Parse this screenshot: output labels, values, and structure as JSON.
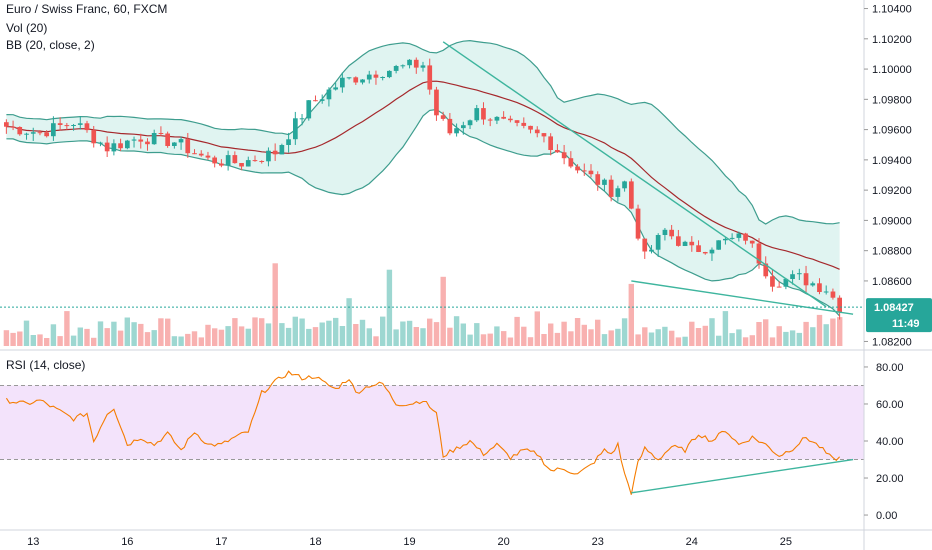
{
  "legend": {
    "title": "Euro / Swiss Franc, 60, FXCM",
    "vol": "Vol (20)",
    "bb": "BB (20, close, 2)",
    "rsi": "RSI (14, close)"
  },
  "price_tag": {
    "price": "1.08427",
    "countdown": "11:49"
  },
  "colors": {
    "up": "#26a69a",
    "down": "#ef5350",
    "bb_line": "#3e9d8e",
    "bb_fill": "#d8f1ee",
    "basis": "#a5282c",
    "rsi_line": "#f57c00",
    "rsi_band": "#f3e3fb",
    "trend": "#3eb59e",
    "tag": "#26a69a"
  },
  "chart_data": {
    "type": "candlestick",
    "price_axis": {
      "ticks": [
        "1.10400",
        "1.10200",
        "1.10000",
        "1.09800",
        "1.09600",
        "1.09400",
        "1.09200",
        "1.09000",
        "1.08800",
        "1.08600",
        "1.08200"
      ],
      "range": [
        1.0817,
        1.1043
      ],
      "last_price": 1.08427
    },
    "rsi_axis": {
      "ticks": [
        "80.00",
        "60.00",
        "40.00",
        "20.00",
        "0.00"
      ],
      "range": [
        -7,
        87
      ],
      "band": [
        30,
        70
      ]
    },
    "x_axis": {
      "labels": [
        "13",
        "16",
        "17",
        "18",
        "19",
        "20",
        "23",
        "24",
        "25"
      ],
      "label_bars": [
        4,
        18,
        32,
        46,
        60,
        74,
        88,
        102,
        116
      ]
    },
    "close_path": [
      [
        0,
        1.0962
      ],
      [
        5,
        1.0958
      ],
      [
        10,
        1.0965
      ],
      [
        15,
        1.0948
      ],
      [
        20,
        1.0955
      ],
      [
        25,
        1.0952
      ],
      [
        30,
        1.094
      ],
      [
        35,
        1.0938
      ],
      [
        40,
        1.0945
      ],
      [
        45,
        1.0976
      ],
      [
        50,
        1.0992
      ],
      [
        55,
        1.0998
      ],
      [
        60,
        1.1002
      ],
      [
        62,
        1.1003
      ],
      [
        64,
        1.097
      ],
      [
        66,
        1.0958
      ],
      [
        70,
        1.0972
      ],
      [
        75,
        1.0962
      ],
      [
        80,
        1.0955
      ],
      [
        85,
        1.0934
      ],
      [
        90,
        1.092
      ],
      [
        92,
        1.0925
      ],
      [
        95,
        1.0875
      ],
      [
        98,
        1.0893
      ],
      [
        102,
        1.088
      ],
      [
        106,
        1.0885
      ],
      [
        110,
        1.0889
      ],
      [
        114,
        1.086
      ],
      [
        118,
        1.0862
      ],
      [
        122,
        1.0855
      ],
      [
        124,
        1.0843
      ]
    ],
    "rsi_points": [
      [
        0,
        62
      ],
      [
        3,
        60
      ],
      [
        5,
        62
      ],
      [
        7,
        58
      ],
      [
        10,
        52
      ],
      [
        12,
        55
      ],
      [
        13,
        40
      ],
      [
        15,
        55
      ],
      [
        16,
        58
      ],
      [
        18,
        38
      ],
      [
        20,
        42
      ],
      [
        22,
        38
      ],
      [
        24,
        44
      ],
      [
        26,
        35
      ],
      [
        28,
        45
      ],
      [
        30,
        38
      ],
      [
        32,
        38
      ],
      [
        34,
        42
      ],
      [
        36,
        45
      ],
      [
        37,
        55
      ],
      [
        38,
        66
      ],
      [
        40,
        72
      ],
      [
        42,
        77
      ],
      [
        44,
        74
      ],
      [
        46,
        75
      ],
      [
        47,
        72
      ],
      [
        49,
        68
      ],
      [
        51,
        74
      ],
      [
        52,
        66
      ],
      [
        54,
        70
      ],
      [
        56,
        71
      ],
      [
        58,
        60
      ],
      [
        60,
        60
      ],
      [
        62,
        62
      ],
      [
        64,
        55
      ],
      [
        65,
        32
      ],
      [
        67,
        36
      ],
      [
        69,
        40
      ],
      [
        71,
        33
      ],
      [
        73,
        38
      ],
      [
        75,
        31
      ],
      [
        77,
        35
      ],
      [
        79,
        33
      ],
      [
        81,
        24
      ],
      [
        83,
        25
      ],
      [
        85,
        22
      ],
      [
        87,
        27
      ],
      [
        89,
        35
      ],
      [
        90,
        33
      ],
      [
        91,
        38
      ],
      [
        92,
        22
      ],
      [
        93,
        12
      ],
      [
        94,
        28
      ],
      [
        95,
        36
      ],
      [
        97,
        30
      ],
      [
        99,
        37
      ],
      [
        101,
        35
      ],
      [
        103,
        44
      ],
      [
        105,
        40
      ],
      [
        107,
        46
      ],
      [
        109,
        38
      ],
      [
        111,
        42
      ],
      [
        113,
        38
      ],
      [
        115,
        32
      ],
      [
        117,
        36
      ],
      [
        119,
        42
      ],
      [
        121,
        37
      ],
      [
        123,
        30
      ],
      [
        124,
        31
      ]
    ],
    "trendlines": [
      {
        "pane": "price",
        "from": [
          65,
          1.1018
        ],
        "to": [
          122,
          1.0843
        ]
      },
      {
        "pane": "price",
        "from": [
          93,
          1.086
        ],
        "to": [
          126,
          1.0838
        ]
      },
      {
        "pane": "rsi",
        "from": [
          93,
          12
        ],
        "to": [
          126,
          30
        ]
      }
    ]
  }
}
